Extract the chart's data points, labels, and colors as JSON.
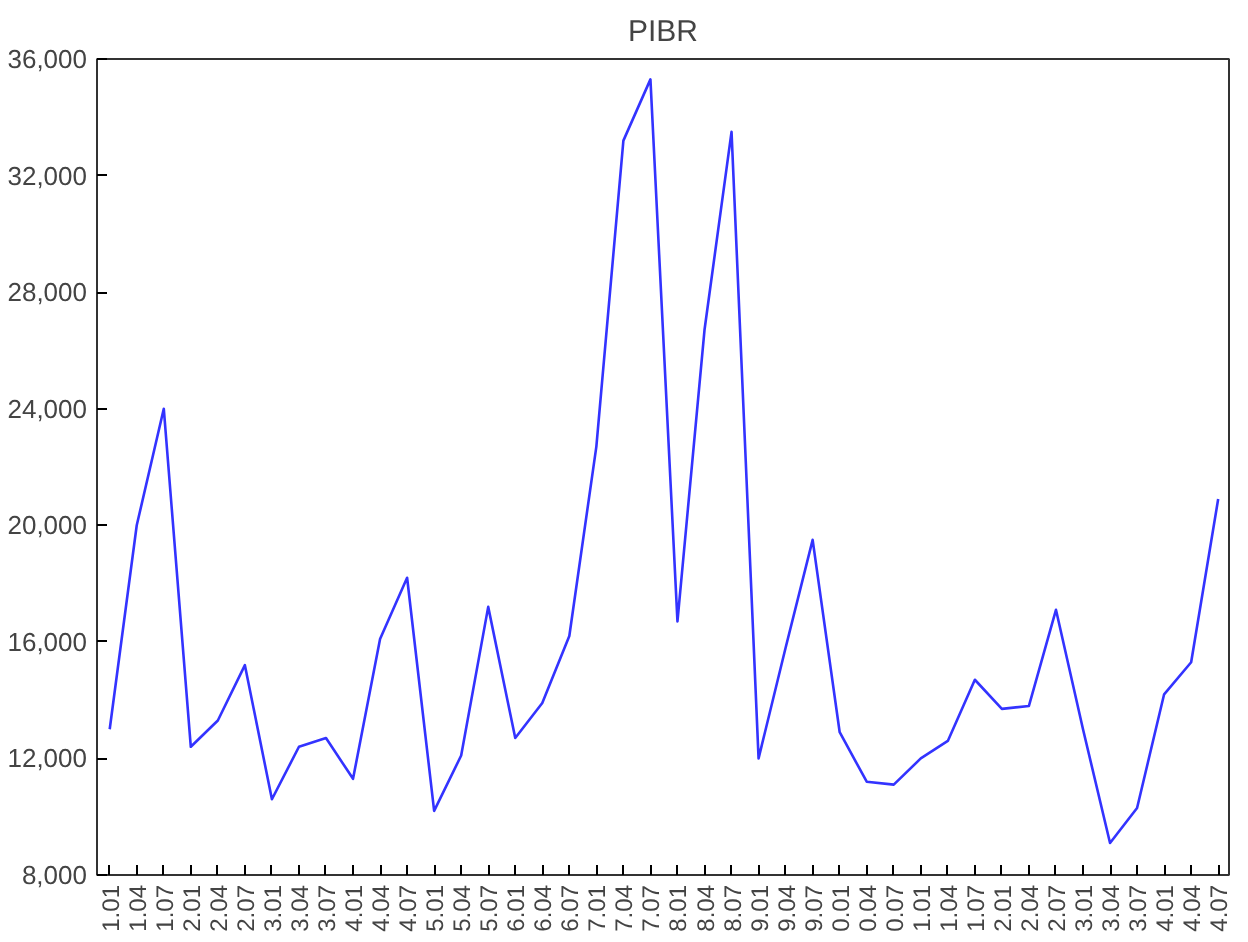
{
  "chart_data": {
    "type": "line",
    "title": "PIBR",
    "categories": [
      "1.01",
      "1.04",
      "1.07",
      "2.01",
      "2.04",
      "2.07",
      "3.01",
      "3.04",
      "3.07",
      "4.01",
      "4.04",
      "4.07",
      "5.01",
      "5.04",
      "5.07",
      "6.01",
      "6.04",
      "6.07",
      "7.01",
      "7.04",
      "7.07",
      "8.01",
      "8.04",
      "8.07",
      "9.01",
      "9.04",
      "9.07",
      "0.01",
      "0.04",
      "0.07",
      "1.01",
      "1.04",
      "1.07",
      "2.01",
      "2.04",
      "2.07",
      "3.01",
      "3.04",
      "3.07",
      "4.01",
      "4.04",
      "4.07"
    ],
    "series": [
      {
        "color": "#3333ff",
        "values": [
          13000,
          20000,
          24000,
          12400,
          13300,
          15200,
          10600,
          12400,
          12700,
          11300,
          16100,
          18200,
          10200,
          12100,
          17200,
          12700,
          13900,
          16200,
          22700,
          33200,
          35300,
          16700,
          26700,
          33500,
          12000,
          15800,
          19500,
          12900,
          11200,
          11100,
          12000,
          12600,
          14700,
          13700,
          13800,
          17100,
          13000,
          9100,
          10300,
          14200,
          15300,
          20900
        ]
      }
    ],
    "ylim": [
      8000,
      36000
    ],
    "yticks": [
      {
        "value": 8000,
        "label": "8,000"
      },
      {
        "value": 12000,
        "label": "12,000"
      },
      {
        "value": 16000,
        "label": "16,000"
      },
      {
        "value": 20000,
        "label": "20,000"
      },
      {
        "value": 24000,
        "label": "24,000"
      },
      {
        "value": 28000,
        "label": "28,000"
      },
      {
        "value": 32000,
        "label": "32,000"
      },
      {
        "value": 36000,
        "label": "36,000"
      }
    ],
    "grid": false,
    "line_style": "solid",
    "marker": "none"
  }
}
